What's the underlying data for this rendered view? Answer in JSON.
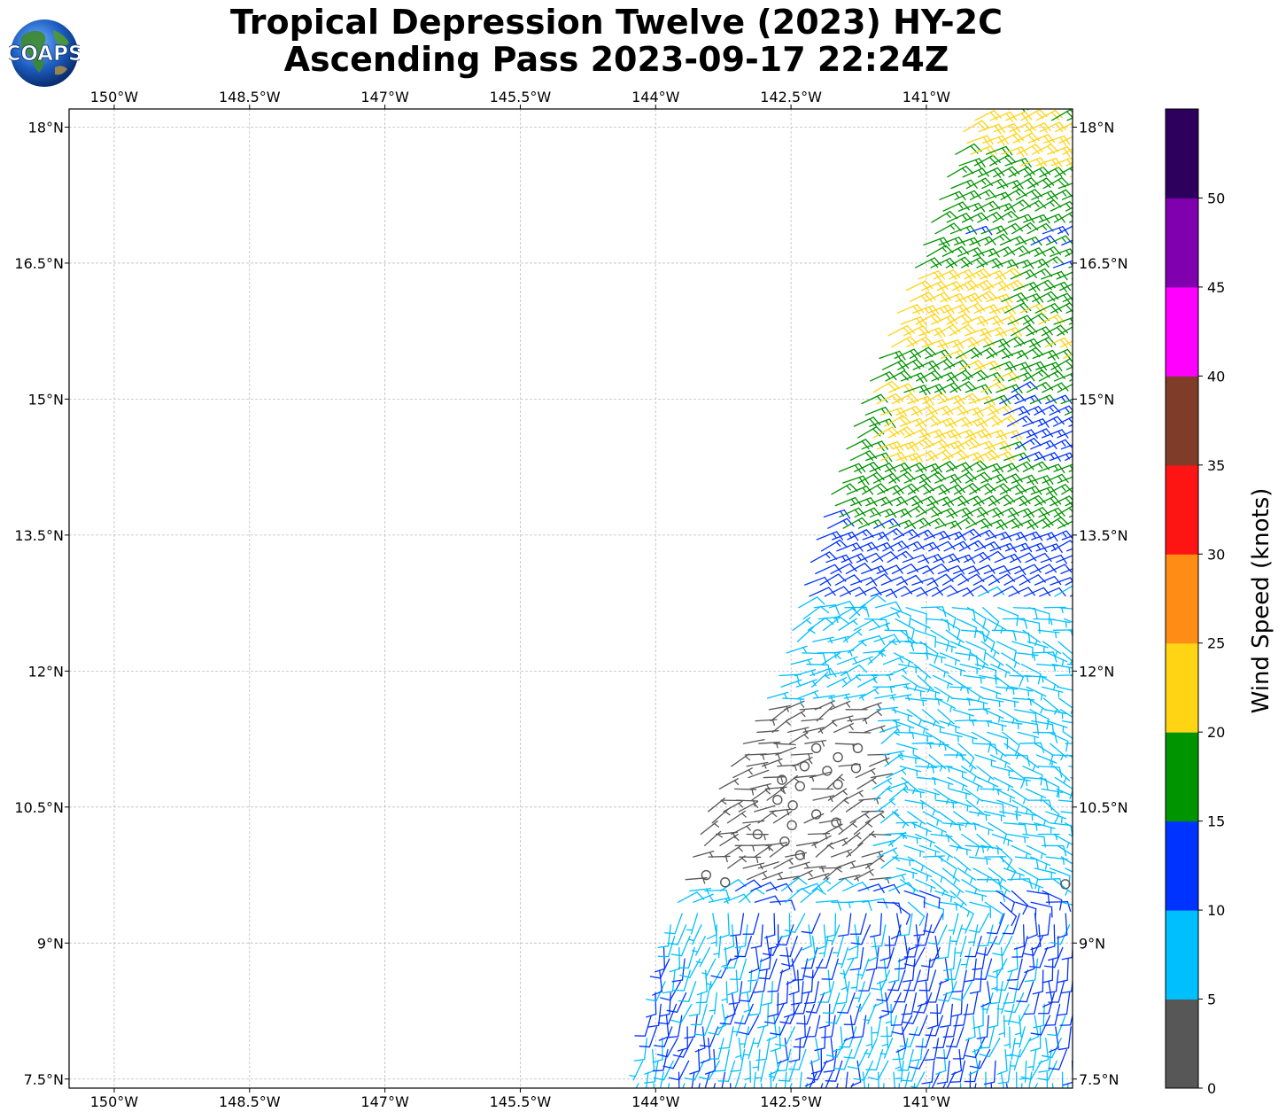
{
  "title": {
    "line1": "Tropical Depression Twelve (2023) HY-2C",
    "line2": "Ascending Pass 2023-09-17 22:24Z"
  },
  "logo": {
    "text": "COAPS",
    "icon": "globe-logo-icon"
  },
  "map": {
    "lon_range": [
      -150.5,
      -139.38
    ],
    "lat_range": [
      7.4,
      18.2
    ],
    "grid": true,
    "lon_ticks": [
      {
        "value": -150.0,
        "label": "150°W"
      },
      {
        "value": -148.5,
        "label": "148.5°W"
      },
      {
        "value": -147.0,
        "label": "147°W"
      },
      {
        "value": -145.5,
        "label": "145.5°W"
      },
      {
        "value": -144.0,
        "label": "144°W"
      },
      {
        "value": -142.5,
        "label": "142.5°W"
      },
      {
        "value": -141.0,
        "label": "141°W"
      }
    ],
    "lat_ticks": [
      {
        "value": 18.0,
        "label": "18°N"
      },
      {
        "value": 16.5,
        "label": "16.5°N"
      },
      {
        "value": 15.0,
        "label": "15°N"
      },
      {
        "value": 13.5,
        "label": "13.5°N"
      },
      {
        "value": 12.0,
        "label": "12°N"
      },
      {
        "value": 10.5,
        "label": "10.5°N"
      },
      {
        "value": 9.0,
        "label": "9°N"
      },
      {
        "value": 7.5,
        "label": "7.5°N"
      }
    ]
  },
  "colorbar": {
    "label": "Wind Speed (knots)",
    "bins": [
      {
        "min": 0,
        "max": 5,
        "color": "#575757"
      },
      {
        "min": 5,
        "max": 10,
        "color": "#00bfff"
      },
      {
        "min": 10,
        "max": 15,
        "color": "#0033ff"
      },
      {
        "min": 15,
        "max": 20,
        "color": "#009400"
      },
      {
        "min": 20,
        "max": 25,
        "color": "#ffd414"
      },
      {
        "min": 25,
        "max": 30,
        "color": "#ff8c14"
      },
      {
        "min": 30,
        "max": 35,
        "color": "#ff1414"
      },
      {
        "min": 35,
        "max": 40,
        "color": "#7f3c28"
      },
      {
        "min": 40,
        "max": 45,
        "color": "#ff00ff"
      },
      {
        "min": 45,
        "max": 50,
        "color": "#8000b0"
      },
      {
        "min": 50,
        "max": 55,
        "color": "#2e005e"
      }
    ],
    "ticks": [
      "0",
      "5",
      "10",
      "15",
      "20",
      "25",
      "30",
      "35",
      "40",
      "45",
      "50"
    ]
  },
  "wind_field": {
    "description_only_for_rendering": false,
    "swath_lat_range": [
      7.4,
      18.2
    ],
    "swath_west_edge": [
      {
        "lat": 7.4,
        "lon": -144.2
      },
      {
        "lat": 9.0,
        "lon": -143.9
      },
      {
        "lat": 10.5,
        "lon": -143.4
      },
      {
        "lat": 12.0,
        "lon": -142.6
      },
      {
        "lat": 13.5,
        "lon": -142.2
      },
      {
        "lat": 15.0,
        "lon": -141.7
      },
      {
        "lat": 16.5,
        "lon": -141.1
      },
      {
        "lat": 18.2,
        "lon": -140.5
      }
    ],
    "calm_points": [
      {
        "lat": 11.15,
        "lon": -142.22
      },
      {
        "lat": 11.05,
        "lon": -141.98
      },
      {
        "lat": 11.15,
        "lon": -141.76
      },
      {
        "lat": 10.95,
        "lon": -142.35
      },
      {
        "lat": 10.9,
        "lon": -142.1
      },
      {
        "lat": 10.93,
        "lon": -141.78
      },
      {
        "lat": 10.8,
        "lon": -142.6
      },
      {
        "lat": 10.73,
        "lon": -142.4
      },
      {
        "lat": 10.75,
        "lon": -141.98
      },
      {
        "lat": 10.58,
        "lon": -142.65
      },
      {
        "lat": 10.52,
        "lon": -142.48
      },
      {
        "lat": 10.42,
        "lon": -142.22
      },
      {
        "lat": 10.3,
        "lon": -142.49
      },
      {
        "lat": 10.33,
        "lon": -142.0
      },
      {
        "lat": 10.2,
        "lon": -142.87
      },
      {
        "lat": 10.12,
        "lon": -142.57
      },
      {
        "lat": 9.97,
        "lon": -142.4
      },
      {
        "lat": 9.75,
        "lon": -143.44
      },
      {
        "lat": 9.67,
        "lon": -143.23
      },
      {
        "lat": 9.65,
        "lon": -139.46
      }
    ]
  }
}
